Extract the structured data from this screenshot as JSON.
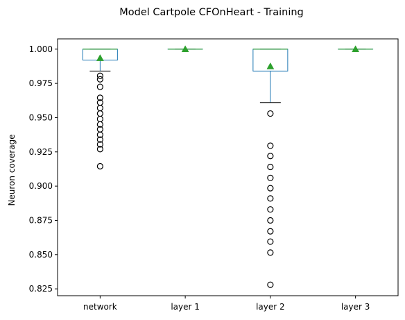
{
  "colors": {
    "box": "#1f77b4",
    "median": "#2ca02c",
    "mean_marker": "#2ca02c",
    "flier_edge": "#000000",
    "whisker_cap": "#000000",
    "axes": "#000000"
  },
  "chart_data": {
    "type": "boxplot",
    "title": "Model Cartpole CFOnHeart - Training",
    "xlabel": "",
    "ylabel": "Neuron coverage",
    "ylim": [
      0.82,
      1.0075
    ],
    "yticks": [
      0.825,
      0.85,
      0.875,
      0.9,
      0.925,
      0.95,
      0.975,
      1.0
    ],
    "ytick_labels": [
      "0.825",
      "0.850",
      "0.875",
      "0.900",
      "0.925",
      "0.950",
      "0.975",
      "1.000"
    ],
    "grid": false,
    "categories": [
      "network",
      "layer 1",
      "layer 2",
      "layer 3"
    ],
    "boxes": [
      {
        "name": "network",
        "whisker_low": 0.984,
        "q1": 0.992,
        "median": 1.0,
        "q3": 1.0,
        "whisker_high": 1.0,
        "mean": 0.9935,
        "fliers": [
          0.9805,
          0.978,
          0.9725,
          0.9645,
          0.961,
          0.957,
          0.953,
          0.949,
          0.945,
          0.9415,
          0.9375,
          0.934,
          0.9305,
          0.927,
          0.9145
        ]
      },
      {
        "name": "layer 1",
        "whisker_low": 1.0,
        "q1": 1.0,
        "median": 1.0,
        "q3": 1.0,
        "whisker_high": 1.0,
        "mean": 1.0,
        "fliers": []
      },
      {
        "name": "layer 2",
        "whisker_low": 0.961,
        "q1": 0.984,
        "median": 1.0,
        "q3": 1.0,
        "whisker_high": 1.0,
        "mean": 0.9875,
        "fliers": [
          0.953,
          0.9295,
          0.922,
          0.914,
          0.906,
          0.8985,
          0.891,
          0.883,
          0.875,
          0.867,
          0.8595,
          0.8515,
          0.828
        ]
      },
      {
        "name": "layer 3",
        "whisker_low": 1.0,
        "q1": 1.0,
        "median": 1.0,
        "q3": 1.0,
        "whisker_high": 1.0,
        "mean": 1.0,
        "fliers": []
      }
    ]
  }
}
